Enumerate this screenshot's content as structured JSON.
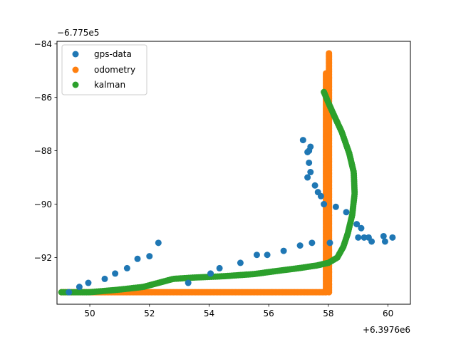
{
  "chart_data": {
    "type": "scatter",
    "x_offset_label": "+6.3976e6",
    "y_offset_label": "−6.775e5",
    "xlim": [
      48.9,
      60.75
    ],
    "ylim": [
      -93.75,
      -83.9
    ],
    "x_ticks": [
      {
        "value": 50,
        "label": "50"
      },
      {
        "value": 52,
        "label": "52"
      },
      {
        "value": 54,
        "label": "54"
      },
      {
        "value": 56,
        "label": "56"
      },
      {
        "value": 58,
        "label": "58"
      },
      {
        "value": 60,
        "label": "60"
      }
    ],
    "y_ticks": [
      {
        "value": -84,
        "label": "−84"
      },
      {
        "value": -86,
        "label": "−86"
      },
      {
        "value": -88,
        "label": "−88"
      },
      {
        "value": -90,
        "label": "−90"
      },
      {
        "value": -92,
        "label": "−92"
      }
    ],
    "legend_position": "upper-left",
    "series": [
      {
        "name": "gps-data",
        "color": "#1f77b4",
        "points": [
          [
            49.3,
            -93.3
          ],
          [
            49.65,
            -93.1
          ],
          [
            49.95,
            -92.95
          ],
          [
            50.5,
            -92.8
          ],
          [
            50.85,
            -92.6
          ],
          [
            51.25,
            -92.4
          ],
          [
            51.6,
            -92.05
          ],
          [
            52.0,
            -91.95
          ],
          [
            52.3,
            -91.45
          ],
          [
            53.3,
            -92.95
          ],
          [
            54.05,
            -92.6
          ],
          [
            54.35,
            -92.4
          ],
          [
            55.05,
            -92.2
          ],
          [
            55.6,
            -91.9
          ],
          [
            55.95,
            -91.9
          ],
          [
            56.5,
            -91.75
          ],
          [
            57.05,
            -91.55
          ],
          [
            57.45,
            -91.45
          ],
          [
            58.05,
            -91.45
          ],
          [
            57.15,
            -87.6
          ],
          [
            57.3,
            -88.05
          ],
          [
            57.35,
            -88.0
          ],
          [
            57.4,
            -87.85
          ],
          [
            57.35,
            -88.45
          ],
          [
            57.4,
            -88.8
          ],
          [
            57.3,
            -89.0
          ],
          [
            57.55,
            -89.3
          ],
          [
            57.65,
            -89.55
          ],
          [
            57.75,
            -89.7
          ],
          [
            57.85,
            -90.0
          ],
          [
            58.25,
            -90.1
          ],
          [
            58.6,
            -90.3
          ],
          [
            58.95,
            -90.75
          ],
          [
            59.0,
            -91.25
          ],
          [
            59.1,
            -90.9
          ],
          [
            59.2,
            -91.25
          ],
          [
            59.35,
            -91.25
          ],
          [
            59.45,
            -91.4
          ],
          [
            59.85,
            -91.2
          ],
          [
            59.9,
            -91.4
          ],
          [
            60.15,
            -91.25
          ]
        ]
      },
      {
        "name": "odometry",
        "color": "#ff7f0e",
        "segments": [
          {
            "x0": 49.05,
            "y0": -93.3,
            "x1": 57.9,
            "y1": -93.3,
            "n": 180
          },
          {
            "x0": 57.92,
            "y0": -93.3,
            "x1": 57.92,
            "y1": -85.1,
            "n": 150
          },
          {
            "x0": 58.02,
            "y0": -93.3,
            "x1": 58.02,
            "y1": -84.35,
            "n": 160
          }
        ]
      },
      {
        "name": "kalman",
        "color": "#2ca02c",
        "polyline": [
          [
            49.05,
            -93.3
          ],
          [
            50.0,
            -93.3
          ],
          [
            51.0,
            -93.2
          ],
          [
            51.8,
            -93.1
          ],
          [
            52.3,
            -92.95
          ],
          [
            52.8,
            -92.8
          ],
          [
            53.5,
            -92.75
          ],
          [
            54.5,
            -92.7
          ],
          [
            55.5,
            -92.62
          ],
          [
            56.3,
            -92.5
          ],
          [
            57.0,
            -92.4
          ],
          [
            57.6,
            -92.3
          ],
          [
            58.0,
            -92.2
          ],
          [
            58.3,
            -92.0
          ],
          [
            58.5,
            -91.6
          ],
          [
            58.65,
            -91.1
          ],
          [
            58.8,
            -90.4
          ],
          [
            58.88,
            -89.6
          ],
          [
            58.85,
            -88.8
          ],
          [
            58.7,
            -88.1
          ],
          [
            58.45,
            -87.3
          ],
          [
            58.2,
            -86.7
          ],
          [
            58.0,
            -86.2
          ],
          [
            57.85,
            -85.8
          ]
        ],
        "n": 220
      }
    ]
  }
}
